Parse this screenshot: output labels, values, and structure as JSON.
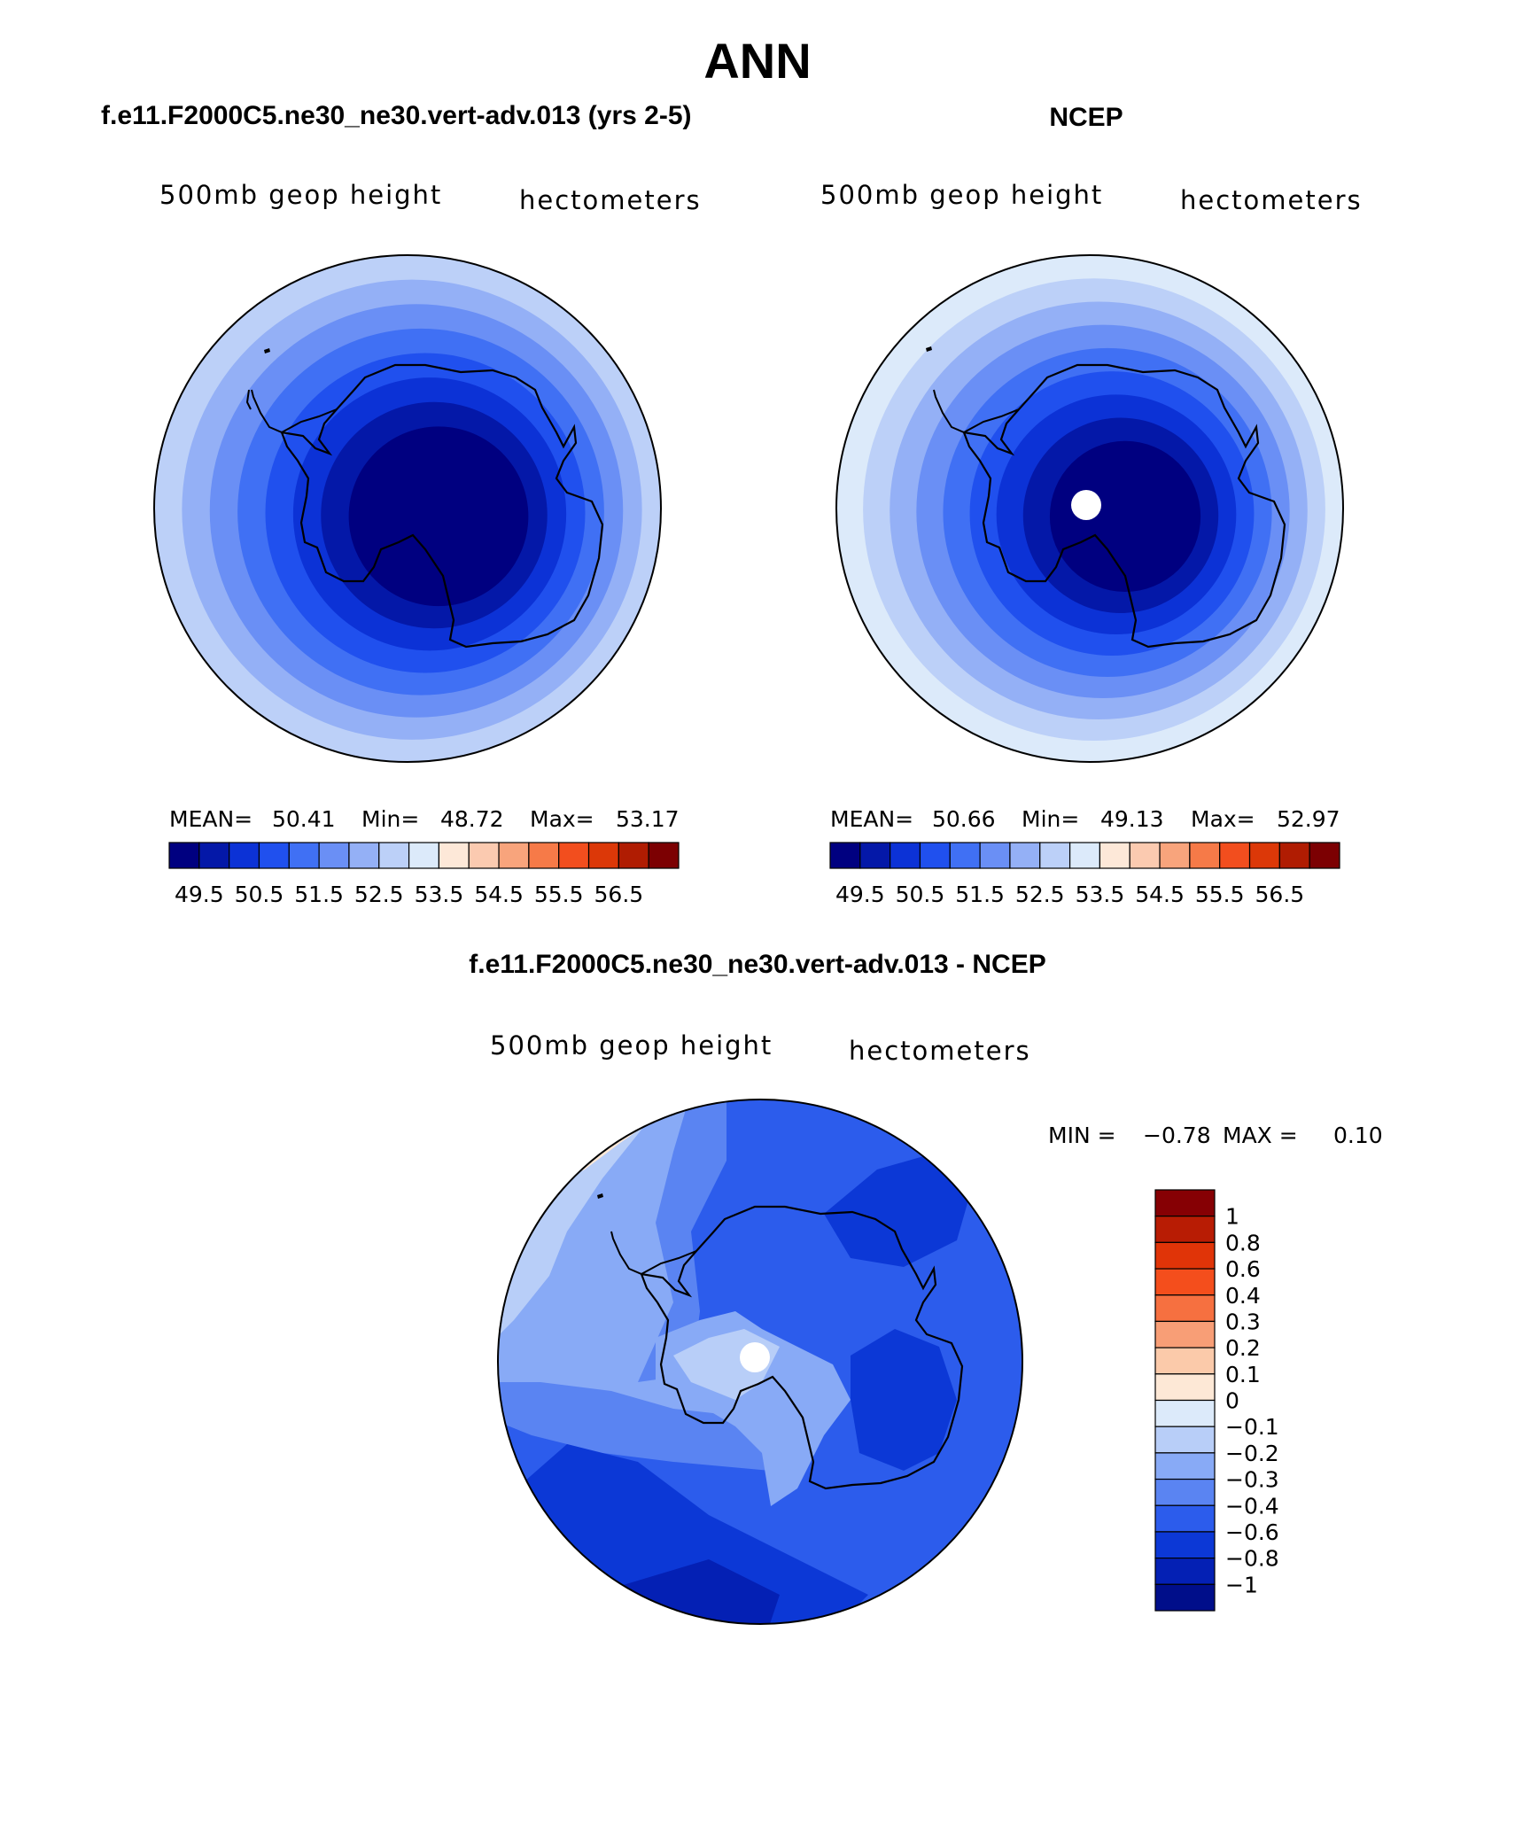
{
  "figure": {
    "title": "ANN"
  },
  "panels": [
    {
      "id": "model",
      "header": "f.e11.F2000C5.ne30_ne30.vert-adv.013 (yrs 2-5)",
      "left_label": "500mb geop height",
      "right_label": "hectometers",
      "stats": {
        "mean_label": "MEAN=",
        "mean": "50.41",
        "min_label": "Min=",
        "min": "48.72",
        "max_label": "Max=",
        "max": "53.17"
      }
    },
    {
      "id": "obs",
      "header": "NCEP",
      "left_label": "500mb geop height",
      "right_label": "hectometers",
      "stats": {
        "mean_label": "MEAN=",
        "mean": "50.66",
        "min_label": "Min=",
        "min": "49.13",
        "max_label": "Max=",
        "max": "52.97"
      }
    },
    {
      "id": "diff",
      "header": "f.e11.F2000C5.ne30_ne30.vert-adv.013 - NCEP",
      "left_label": "500mb geop height",
      "right_label": "hectometers",
      "stats": {
        "min_label": "MIN =",
        "min": "−0.78",
        "max_label": "MAX =",
        "max": "0.10"
      }
    }
  ],
  "chart_data": [
    {
      "type": "heatmap",
      "projection": "south polar stereographic",
      "title": "f.e11.F2000C5.ne30_ne30.vert-adv.013 (yrs 2-5)",
      "variable": "500mb geop height",
      "units": "hectometers",
      "mean": 50.41,
      "min": 48.72,
      "max": 53.17,
      "contour_levels": [
        49.5,
        50,
        50.5,
        51,
        51.5,
        52,
        52.5,
        53,
        53.5,
        54,
        54.5,
        55,
        55.5,
        56,
        56.5
      ],
      "colorbar_tick_labels": [
        "49.5",
        "50.5",
        "51.5",
        "52.5",
        "53.5",
        "54.5",
        "55.5",
        "56.5"
      ],
      "ring_bands_pole_to_edge": [
        49.3,
        49.8,
        50.3,
        50.8,
        51.3,
        51.8,
        52.3,
        52.8
      ],
      "colors": [
        "#000080",
        "#0418a8",
        "#0c32d6",
        "#2050ee",
        "#4070f4",
        "#6a8ff5",
        "#94b0f6",
        "#bcd0f8",
        "#dceafa",
        "#fde8d8",
        "#fbcab0",
        "#f8a47c",
        "#f67a48",
        "#f24e1e",
        "#dc3808",
        "#b01c02",
        "#7c0002"
      ]
    },
    {
      "type": "heatmap",
      "projection": "south polar stereographic",
      "title": "NCEP",
      "variable": "500mb geop height",
      "units": "hectometers",
      "mean": 50.66,
      "min": 49.13,
      "max": 52.97,
      "contour_levels": [
        49.5,
        50,
        50.5,
        51,
        51.5,
        52,
        52.5,
        53,
        53.5,
        54,
        54.5,
        55,
        55.5,
        56,
        56.5
      ],
      "colorbar_tick_labels": [
        "49.5",
        "50.5",
        "51.5",
        "52.5",
        "53.5",
        "54.5",
        "55.5",
        "56.5"
      ],
      "ring_bands_pole_to_edge": [
        49.3,
        49.8,
        50.3,
        50.8,
        51.3,
        51.8,
        52.3,
        52.8,
        53.2
      ]
    },
    {
      "type": "heatmap",
      "projection": "south polar stereographic",
      "title": "f.e11.F2000C5.ne30_ne30.vert-adv.013 - NCEP",
      "variable": "500mb geop height",
      "units": "hectometers",
      "min": -0.78,
      "max": 0.1,
      "contour_levels": [
        -1,
        -0.8,
        -0.6,
        -0.4,
        -0.3,
        -0.2,
        -0.1,
        0,
        0.1,
        0.2,
        0.3,
        0.4,
        0.6,
        0.8,
        1
      ],
      "colorbar_tick_labels": [
        "1",
        "0.8",
        "0.6",
        "0.4",
        "0.3",
        "0.2",
        "0.1",
        "0",
        "−0.1",
        "−0.2",
        "−0.3",
        "−0.4",
        "−0.6",
        "−0.8",
        "−1"
      ],
      "colors": [
        "#860004",
        "#b81c04",
        "#e03408",
        "#f44e1c",
        "#f67040",
        "#f89e76",
        "#fbcaaa",
        "#fde8d6",
        "#dceafa",
        "#b8cef8",
        "#88aaf6",
        "#5a84f2",
        "#2c5cec",
        "#0c38d6",
        "#0420b4",
        "#000e8a"
      ]
    }
  ]
}
